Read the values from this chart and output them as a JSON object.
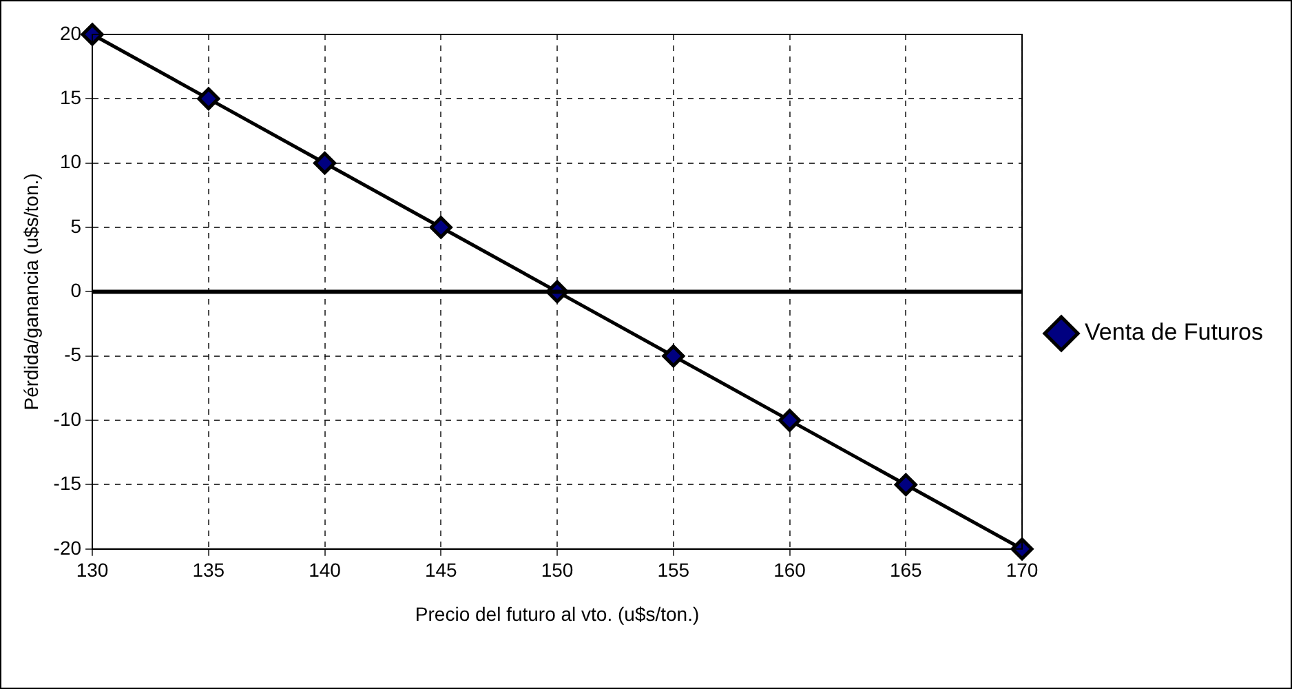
{
  "chart_data": {
    "type": "line",
    "xlabel": "Precio del futuro al vto. (u$s/ton.)",
    "ylabel": "Pérdida/ganancia (u$s/ton.)",
    "x": [
      130,
      135,
      140,
      145,
      150,
      155,
      160,
      165,
      170
    ],
    "series": [
      {
        "name": "Venta de Futuros",
        "color": "#000080",
        "values": [
          20,
          15,
          10,
          5,
          0,
          -5,
          -10,
          -15,
          -20
        ]
      }
    ],
    "xlim": [
      130,
      170
    ],
    "xticks": [
      130,
      135,
      140,
      145,
      150,
      155,
      160,
      165,
      170
    ],
    "ylim": [
      -20,
      20
    ],
    "yticks": [
      -20,
      -15,
      -10,
      -5,
      0,
      5,
      10,
      15,
      20
    ],
    "ref_lines": [
      {
        "axis": "y",
        "value": 0,
        "color": "#000000"
      }
    ],
    "grid": true,
    "legend": "right",
    "marker": "diamond",
    "line_style": "solid"
  }
}
